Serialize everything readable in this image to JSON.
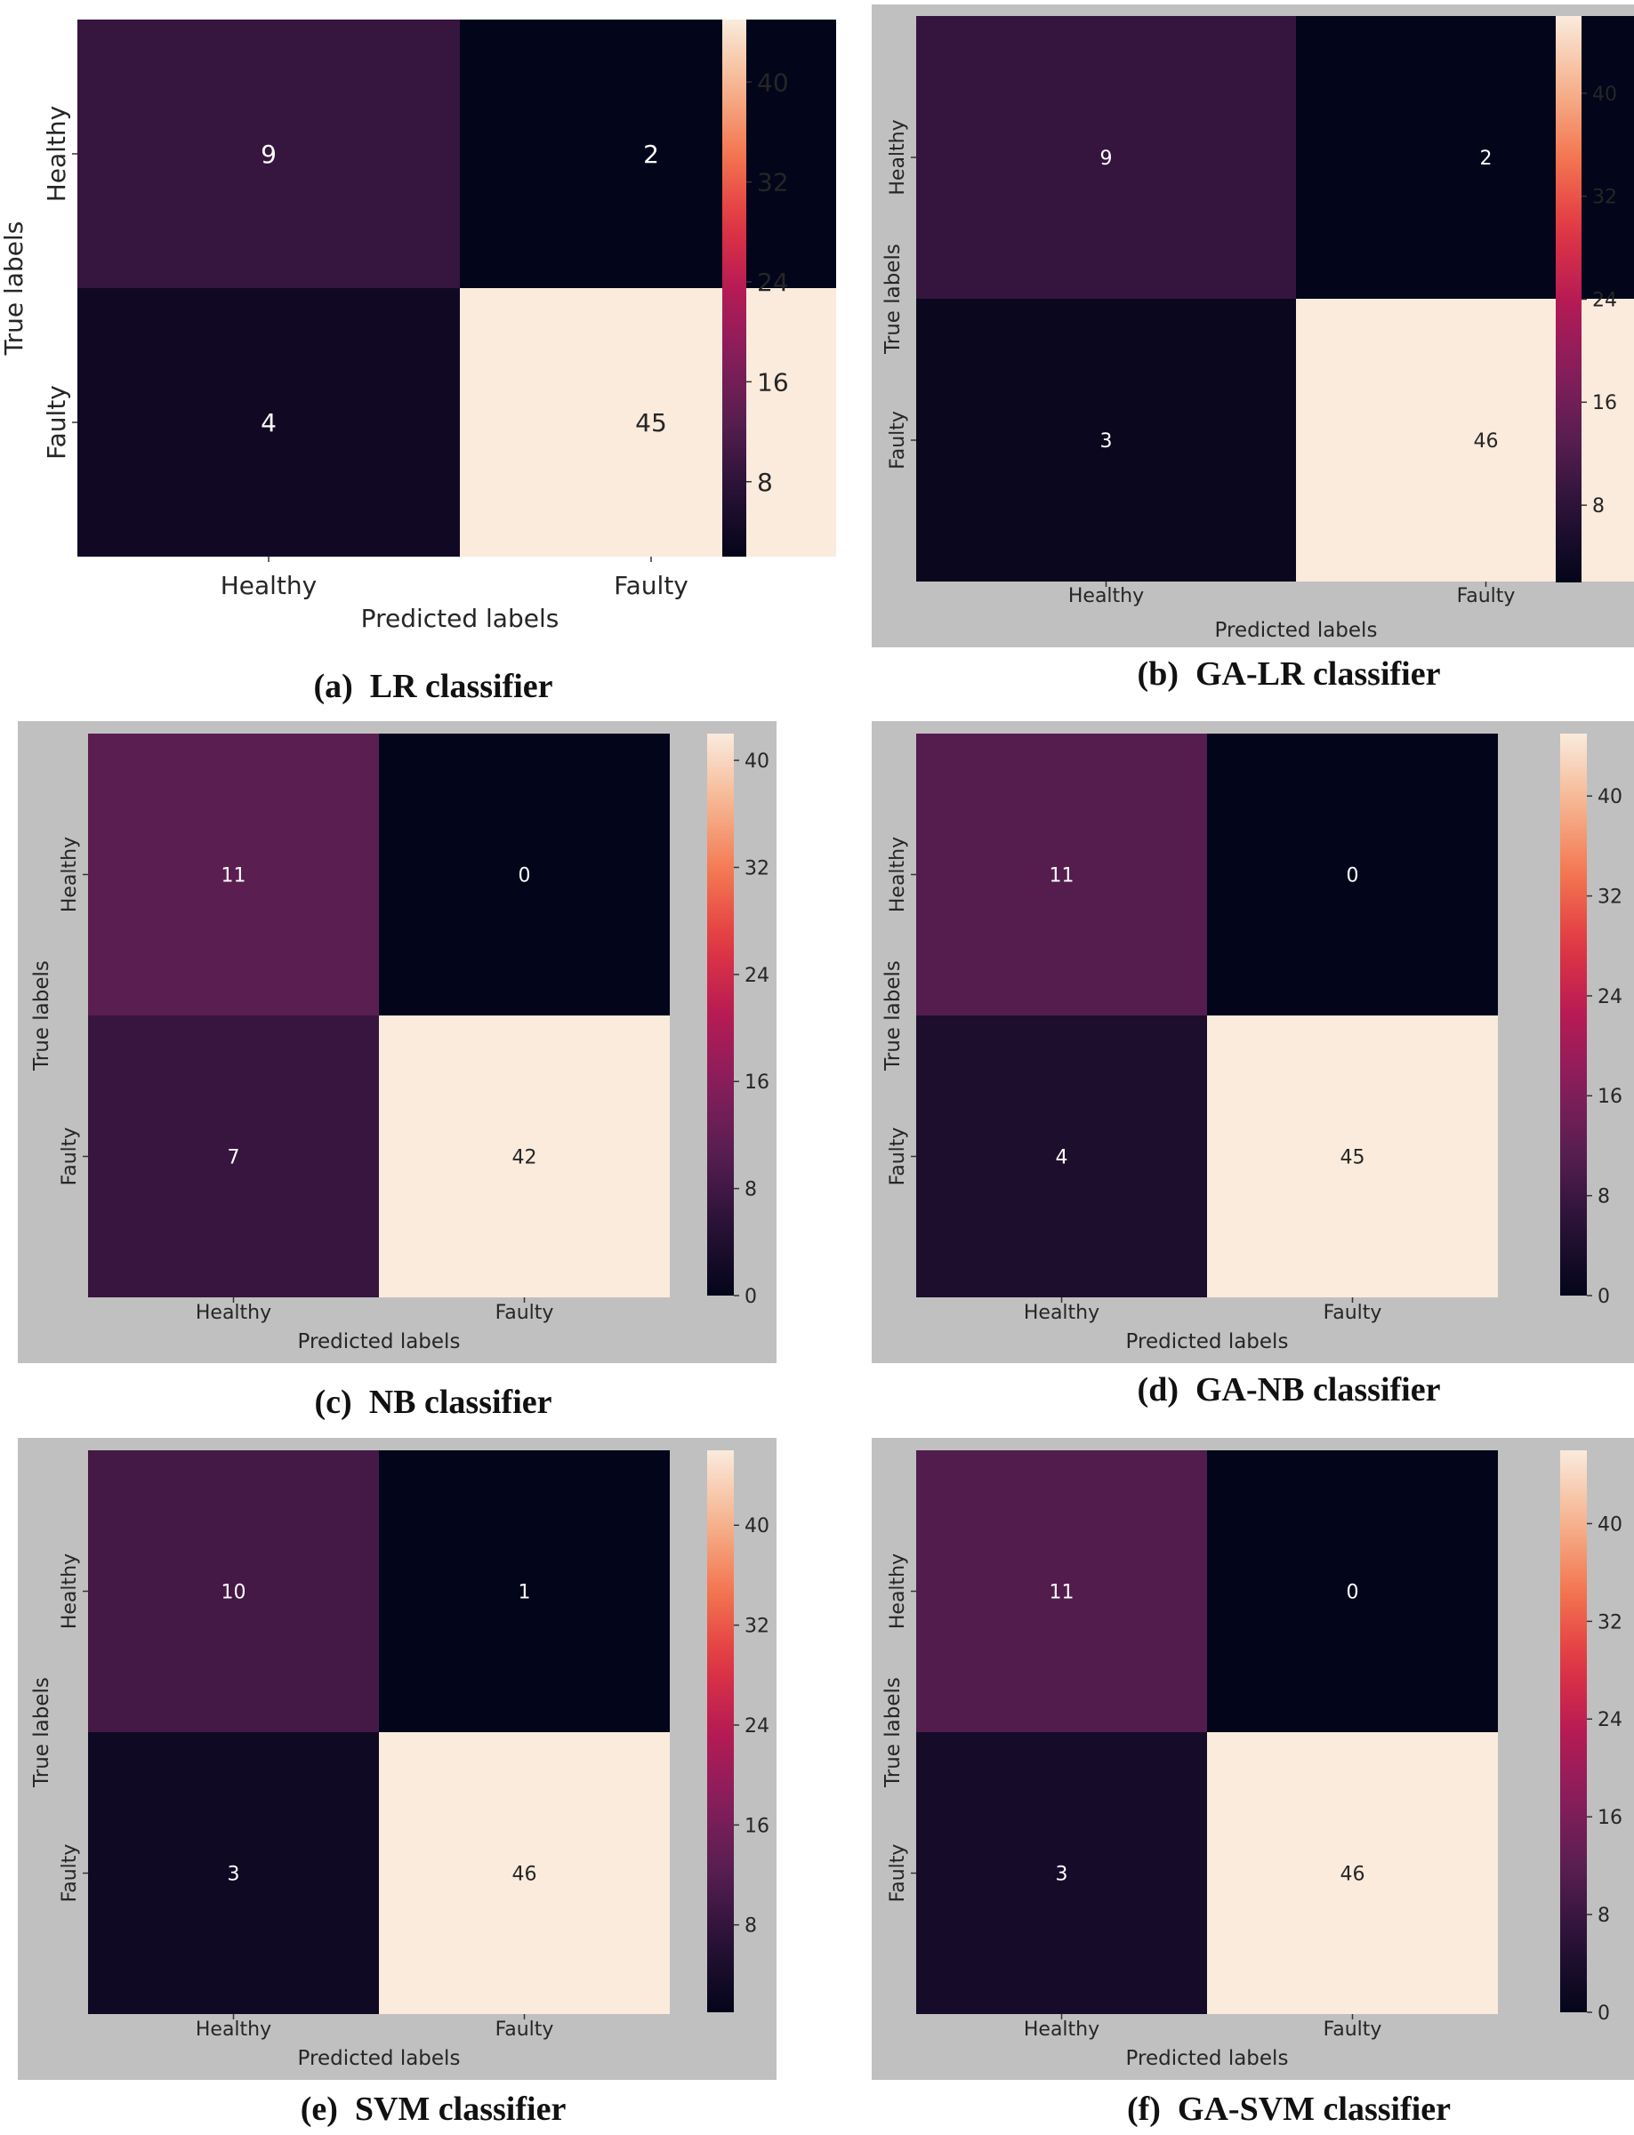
{
  "chart_data": [
    {
      "type": "heatmap",
      "title": "",
      "caption": "(a)  LR classifier",
      "xlabel": "Predicted labels",
      "ylabel": "True labels",
      "x_categories": [
        "Healthy",
        "Faulty"
      ],
      "y_categories": [
        "Healthy",
        "Faulty"
      ],
      "values": [
        [
          9,
          2
        ],
        [
          4,
          45
        ]
      ],
      "colorbar_ticks": [
        8,
        16,
        24,
        32,
        40
      ],
      "colorbar_range": [
        2,
        45
      ],
      "background": "#ffffff"
    },
    {
      "type": "heatmap",
      "title": "",
      "caption": "(b)  GA-LR classifier",
      "xlabel": "Predicted labels",
      "ylabel": "True labels",
      "x_categories": [
        "Healthy",
        "Faulty"
      ],
      "y_categories": [
        "Healthy",
        "Faulty"
      ],
      "values": [
        [
          9,
          2
        ],
        [
          3,
          46
        ]
      ],
      "colorbar_ticks": [
        8,
        16,
        24,
        32,
        40
      ],
      "colorbar_range": [
        2,
        46
      ],
      "background": "#c0c0c0"
    },
    {
      "type": "heatmap",
      "title": "",
      "caption": "(c)  NB classifier",
      "xlabel": "Predicted labels",
      "ylabel": "True labels",
      "x_categories": [
        "Healthy",
        "Faulty"
      ],
      "y_categories": [
        "Healthy",
        "Faulty"
      ],
      "values": [
        [
          11,
          0
        ],
        [
          7,
          42
        ]
      ],
      "colorbar_ticks": [
        0,
        8,
        16,
        24,
        32,
        40
      ],
      "colorbar_range": [
        0,
        42
      ],
      "background": "#c0c0c0"
    },
    {
      "type": "heatmap",
      "title": "",
      "caption": "(d)  GA-NB classifier",
      "xlabel": "Predicted labels",
      "ylabel": "True labels",
      "x_categories": [
        "Healthy",
        "Faulty"
      ],
      "y_categories": [
        "Healthy",
        "Faulty"
      ],
      "values": [
        [
          11,
          0
        ],
        [
          4,
          45
        ]
      ],
      "colorbar_ticks": [
        0,
        8,
        16,
        24,
        32,
        40
      ],
      "colorbar_range": [
        0,
        45
      ],
      "background": "#c0c0c0"
    },
    {
      "type": "heatmap",
      "title": "",
      "caption": "(e)  SVM classifier",
      "xlabel": "Predicted labels",
      "ylabel": "True labels",
      "x_categories": [
        "Healthy",
        "Faulty"
      ],
      "y_categories": [
        "Healthy",
        "Faulty"
      ],
      "values": [
        [
          10,
          1
        ],
        [
          3,
          46
        ]
      ],
      "colorbar_ticks": [
        8,
        16,
        24,
        32,
        40
      ],
      "colorbar_range": [
        1,
        46
      ],
      "background": "#c0c0c0"
    },
    {
      "type": "heatmap",
      "title": "",
      "caption": "(f)  GA-SVM classifier",
      "xlabel": "Predicted labels",
      "ylabel": "True labels",
      "x_categories": [
        "Healthy",
        "Faulty"
      ],
      "y_categories": [
        "Healthy",
        "Faulty"
      ],
      "values": [
        [
          11,
          0
        ],
        [
          3,
          46
        ]
      ],
      "colorbar_ticks": [
        0,
        8,
        16,
        24,
        32,
        40
      ],
      "colorbar_range": [
        0,
        46
      ],
      "background": "#c0c0c0"
    }
  ]
}
